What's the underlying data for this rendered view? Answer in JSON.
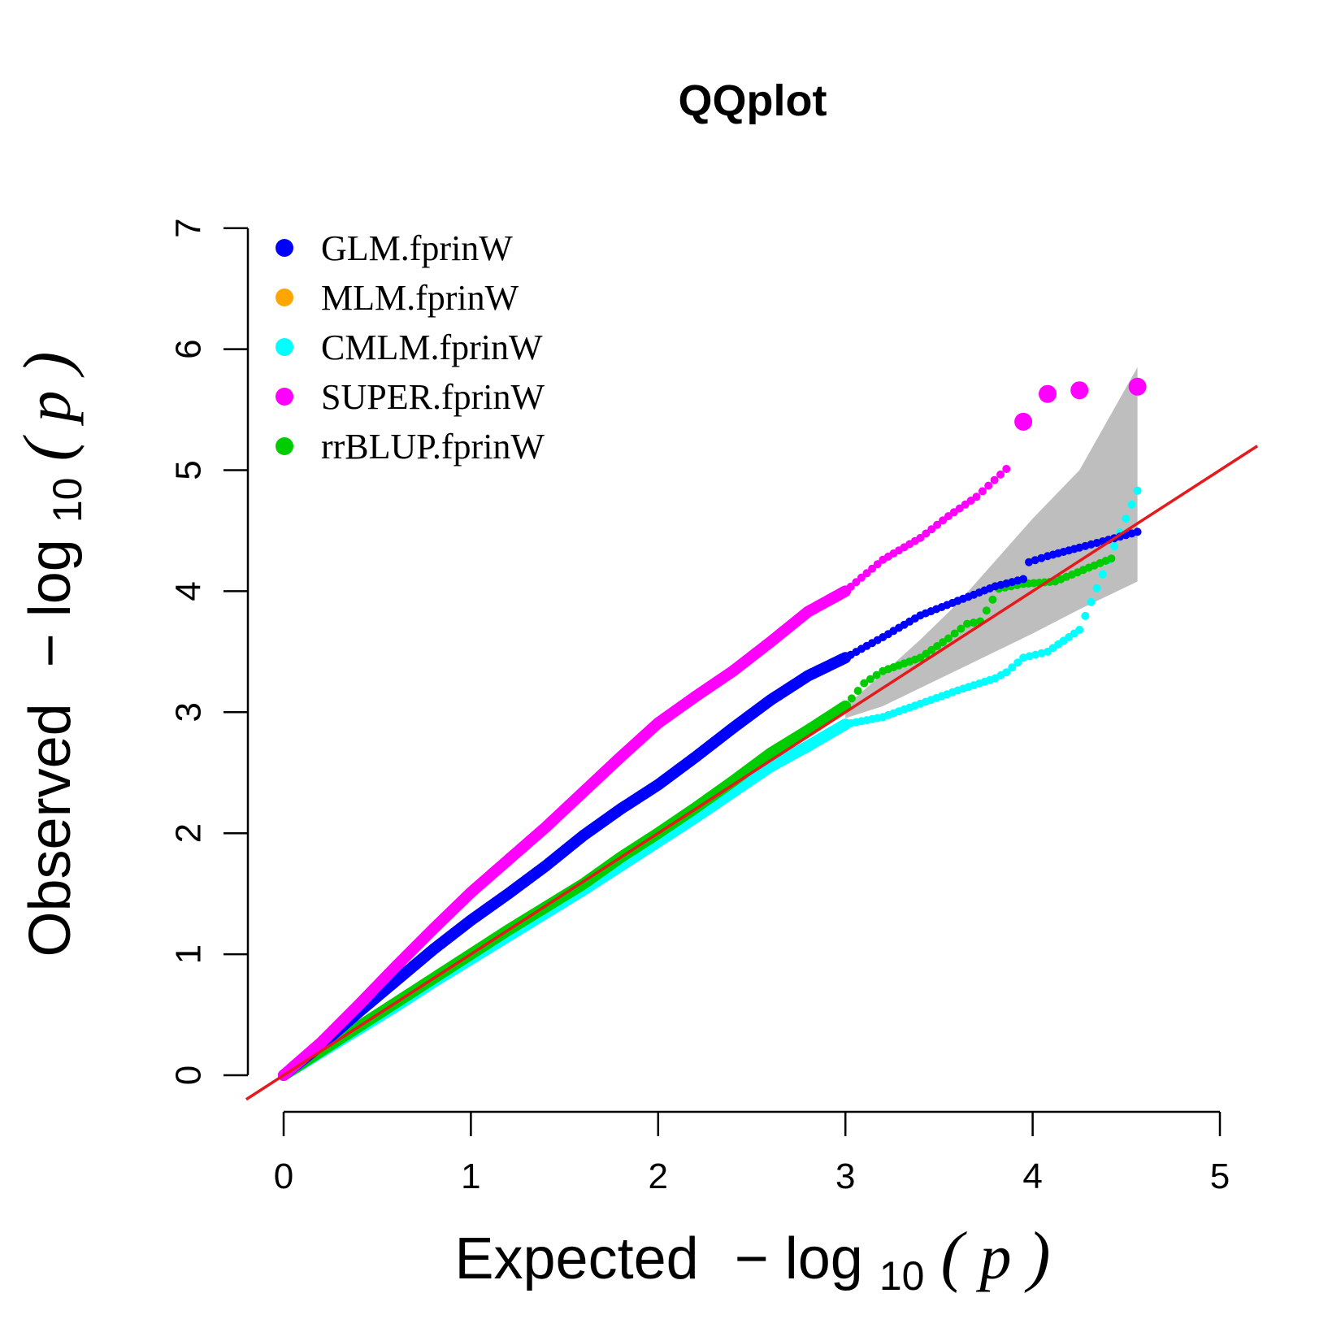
{
  "chart_data": {
    "type": "scatter",
    "title": "QQplot",
    "xlabel": {
      "prefix": "Expected",
      "minus": "−",
      "log": "log",
      "sub": "10",
      "open": "(",
      "var": "p",
      "close": ")"
    },
    "ylabel": {
      "prefix": "Observed",
      "minus": "−",
      "log": "log",
      "sub": "10",
      "open": "(",
      "var": "p",
      "close": ")"
    },
    "xlim": [
      0,
      5
    ],
    "ylim": [
      0,
      7
    ],
    "x_ticks": [
      "0",
      "1",
      "2",
      "3",
      "4",
      "5"
    ],
    "y_ticks": [
      "0",
      "1",
      "2",
      "3",
      "4",
      "5",
      "6",
      "7"
    ],
    "grid": false,
    "legend_position": "top-left",
    "reference_line": {
      "slope": 1,
      "intercept": 0,
      "color": "#e41a1c"
    },
    "confidence_band": {
      "color": "#bebebe",
      "upper": [
        [
          3.0,
          3.05
        ],
        [
          3.2,
          3.32
        ],
        [
          3.4,
          3.6
        ],
        [
          3.6,
          3.9
        ],
        [
          3.8,
          4.25
        ],
        [
          4.0,
          4.6
        ],
        [
          4.25,
          5.0
        ],
        [
          4.56,
          5.85
        ]
      ],
      "lower": [
        [
          4.56,
          4.08
        ],
        [
          4.25,
          3.85
        ],
        [
          4.0,
          3.65
        ],
        [
          3.8,
          3.5
        ],
        [
          3.6,
          3.35
        ],
        [
          3.4,
          3.2
        ],
        [
          3.2,
          3.05
        ],
        [
          3.0,
          2.95
        ]
      ]
    },
    "series": [
      {
        "name": "GLM.fprinW",
        "color": "#0000ff",
        "points": [
          [
            0.0,
            0.0
          ],
          [
            0.2,
            0.25
          ],
          [
            0.4,
            0.52
          ],
          [
            0.6,
            0.78
          ],
          [
            0.8,
            1.04
          ],
          [
            1.0,
            1.28
          ],
          [
            1.2,
            1.5
          ],
          [
            1.4,
            1.73
          ],
          [
            1.6,
            1.98
          ],
          [
            1.8,
            2.2
          ],
          [
            2.0,
            2.4
          ],
          [
            2.2,
            2.63
          ],
          [
            2.4,
            2.87
          ],
          [
            2.6,
            3.1
          ],
          [
            2.8,
            3.3
          ],
          [
            3.0,
            3.45
          ],
          [
            3.2,
            3.62
          ],
          [
            3.4,
            3.8
          ],
          [
            3.6,
            3.92
          ],
          [
            3.8,
            4.04
          ],
          [
            3.95,
            4.1
          ],
          [
            3.98,
            4.24
          ],
          [
            4.08,
            4.29
          ],
          [
            4.25,
            4.36
          ],
          [
            4.56,
            4.49
          ]
        ]
      },
      {
        "name": "MLM.fprinW",
        "color": "#ffa500",
        "points": []
      },
      {
        "name": "CMLM.fprinW",
        "color": "#00ffff",
        "points": [
          [
            0.0,
            0.0
          ],
          [
            0.2,
            0.19
          ],
          [
            0.4,
            0.38
          ],
          [
            0.6,
            0.57
          ],
          [
            0.8,
            0.77
          ],
          [
            1.0,
            0.96
          ],
          [
            1.2,
            1.15
          ],
          [
            1.4,
            1.34
          ],
          [
            1.6,
            1.53
          ],
          [
            1.8,
            1.73
          ],
          [
            2.0,
            1.93
          ],
          [
            2.2,
            2.13
          ],
          [
            2.4,
            2.34
          ],
          [
            2.6,
            2.55
          ],
          [
            2.8,
            2.72
          ],
          [
            3.0,
            2.9
          ],
          [
            3.2,
            2.96
          ],
          [
            3.4,
            3.07
          ],
          [
            3.6,
            3.18
          ],
          [
            3.8,
            3.28
          ],
          [
            3.86,
            3.33
          ],
          [
            3.95,
            3.45
          ],
          [
            4.08,
            3.5
          ],
          [
            4.25,
            3.68
          ],
          [
            4.56,
            4.83
          ]
        ]
      },
      {
        "name": "SUPER.fprinW",
        "color": "#ff00ff",
        "points": [
          [
            0.0,
            0.0
          ],
          [
            0.2,
            0.27
          ],
          [
            0.4,
            0.58
          ],
          [
            0.6,
            0.9
          ],
          [
            0.8,
            1.21
          ],
          [
            1.0,
            1.51
          ],
          [
            1.2,
            1.78
          ],
          [
            1.4,
            2.05
          ],
          [
            1.6,
            2.34
          ],
          [
            1.8,
            2.63
          ],
          [
            2.0,
            2.91
          ],
          [
            2.2,
            3.13
          ],
          [
            2.4,
            3.34
          ],
          [
            2.6,
            3.58
          ],
          [
            2.8,
            3.83
          ],
          [
            3.0,
            4.0
          ],
          [
            3.2,
            4.26
          ],
          [
            3.4,
            4.44
          ],
          [
            3.55,
            4.62
          ],
          [
            3.7,
            4.78
          ],
          [
            3.86,
            5.01
          ]
        ],
        "large_points": [
          [
            3.95,
            5.4
          ],
          [
            4.08,
            5.63
          ],
          [
            4.25,
            5.66
          ],
          [
            4.56,
            5.69
          ]
        ]
      },
      {
        "name": "rrBLUP.fprinW",
        "color": "#00cd00",
        "points": [
          [
            0.0,
            0.0
          ],
          [
            0.2,
            0.2
          ],
          [
            0.4,
            0.4
          ],
          [
            0.6,
            0.6
          ],
          [
            0.8,
            0.8
          ],
          [
            1.0,
            1.0
          ],
          [
            1.2,
            1.2
          ],
          [
            1.4,
            1.39
          ],
          [
            1.6,
            1.58
          ],
          [
            1.8,
            1.8
          ],
          [
            2.0,
            2.0
          ],
          [
            2.2,
            2.21
          ],
          [
            2.4,
            2.43
          ],
          [
            2.6,
            2.66
          ],
          [
            2.8,
            2.85
          ],
          [
            3.0,
            3.05
          ],
          [
            3.1,
            3.24
          ],
          [
            3.2,
            3.34
          ],
          [
            3.4,
            3.45
          ],
          [
            3.55,
            3.61
          ],
          [
            3.65,
            3.73
          ],
          [
            3.72,
            3.75
          ],
          [
            3.82,
            4.02
          ],
          [
            3.95,
            4.06
          ],
          [
            4.12,
            4.08
          ],
          [
            4.42,
            4.27
          ]
        ]
      }
    ]
  }
}
